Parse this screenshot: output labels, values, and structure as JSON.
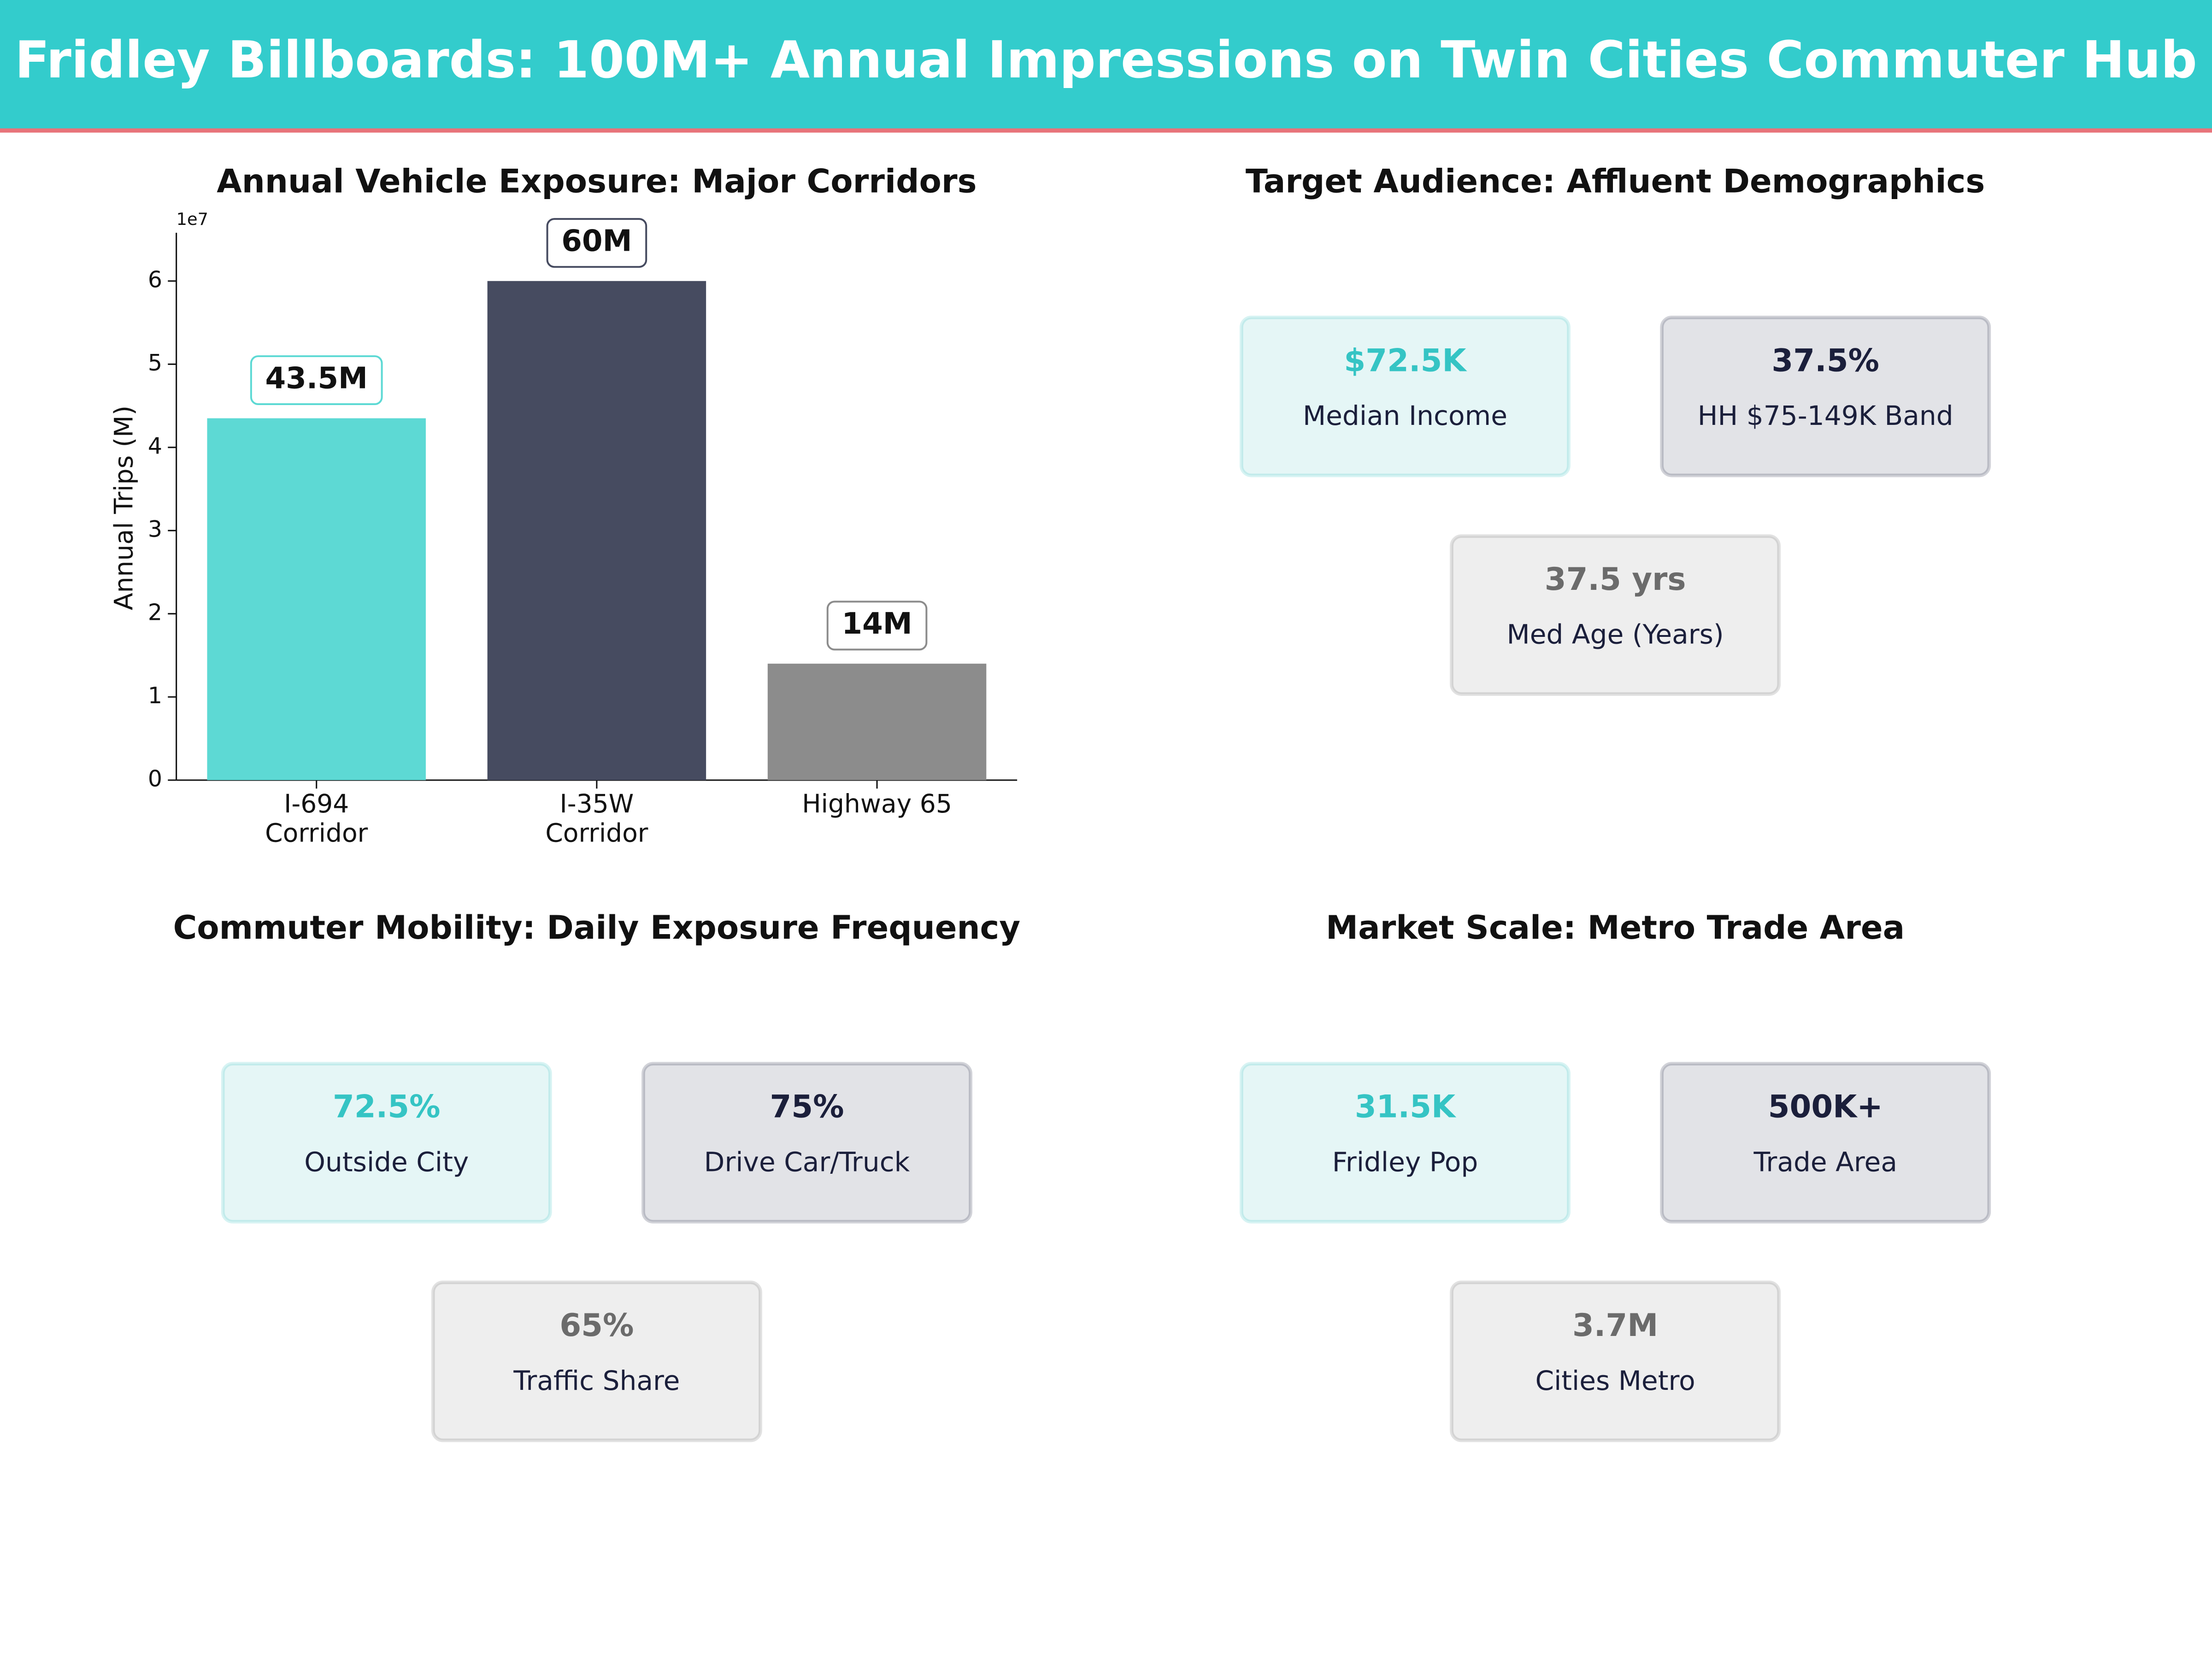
{
  "header": {
    "title": "Fridley Billboards: 100M+ Annual Impressions on Twin Cities Commuter Hub"
  },
  "chart_data": {
    "type": "bar",
    "title": "Annual Vehicle Exposure: Major Corridors",
    "y_label": "Annual Trips (M)",
    "y_offset_label": "1e7",
    "categories": [
      "I-694\nCorridor",
      "I-35W\nCorridor",
      "Highway 65"
    ],
    "values": [
      43500000,
      60000000,
      14000000
    ],
    "value_labels": [
      "43.5M",
      "60M",
      "14M"
    ],
    "colors": [
      "#5dd9d4",
      "#464b60",
      "#8c8c8c"
    ],
    "ylim": [
      0,
      65800000
    ],
    "yticks": [
      0,
      {
        "value": 10000000,
        "label": "1"
      },
      {
        "value": 20000000,
        "label": "2"
      },
      {
        "value": 30000000,
        "label": "3"
      },
      {
        "value": 40000000,
        "label": "4"
      },
      {
        "value": 50000000,
        "label": "5"
      },
      {
        "value": 60000000,
        "label": "6"
      }
    ]
  },
  "panels": [
    {
      "title": "Target Audience: Affluent Demographics",
      "cards": [
        {
          "value": "$72.5K",
          "label": "Median Income",
          "color": "#35c4c4",
          "background": "#e5f6f6"
        },
        {
          "value": "37.5%",
          "label": "HH $75-149K Band",
          "color": "#1b1f3b",
          "background": "#e2e3e7"
        },
        {
          "value": "37.5 yrs",
          "label": "Med Age (Years)",
          "color": "#6b6b6b",
          "background": "#eeeeee"
        }
      ]
    },
    {
      "title": "Commuter Mobility: Daily Exposure Frequency",
      "cards": [
        {
          "value": "72.5%",
          "label": "Outside City",
          "color": "#35c4c4",
          "background": "#e5f6f6"
        },
        {
          "value": "75%",
          "label": "Drive Car/Truck",
          "color": "#1b1f3b",
          "background": "#e2e3e7"
        },
        {
          "value": "65%",
          "label": "Traffic Share",
          "color": "#6b6b6b",
          "background": "#eeeeee"
        }
      ]
    },
    {
      "title": "Market Scale: Metro Trade Area",
      "cards": [
        {
          "value": "31.5K",
          "label": "Fridley Pop",
          "color": "#35c4c4",
          "background": "#e5f6f6"
        },
        {
          "value": "500K+",
          "label": "Trade Area",
          "color": "#1b1f3b",
          "background": "#e2e3e7"
        },
        {
          "value": "3.7M",
          "label": "Cities Metro",
          "color": "#6b6b6b",
          "background": "#eeeeee"
        }
      ]
    }
  ]
}
